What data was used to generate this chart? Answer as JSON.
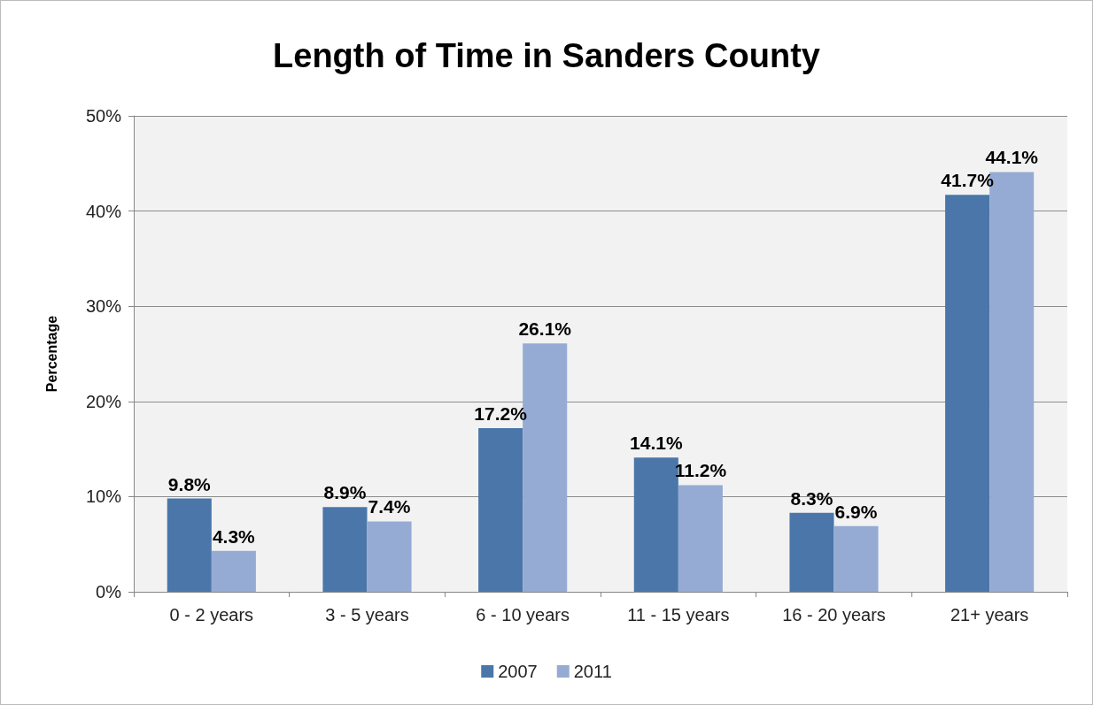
{
  "chart_data": {
    "type": "bar",
    "title": "Length of Time in Sanders County",
    "ylabel": "Percentage",
    "categories": [
      "0 - 2 years",
      "3 - 5 years",
      "6 - 10 years",
      "11 - 15 years",
      "16 - 20 years",
      "21+ years"
    ],
    "series": [
      {
        "name": "2007",
        "color": "#4a76a9",
        "values": [
          9.8,
          8.9,
          17.2,
          14.1,
          8.3,
          41.7
        ],
        "value_labels": [
          "9.8%",
          "8.9%",
          "17.2%",
          "14.1%",
          "8.3%",
          "41.7%"
        ]
      },
      {
        "name": "2011",
        "color": "#95abd4",
        "values": [
          4.3,
          7.4,
          26.1,
          11.2,
          6.9,
          44.1
        ],
        "value_labels": [
          "4.3%",
          "7.4%",
          "26.1%",
          "11.2%",
          "6.9%",
          "44.1%"
        ]
      }
    ],
    "ylim": [
      0,
      50
    ],
    "yticks": [
      {
        "value": 0,
        "label": "0%"
      },
      {
        "value": 10,
        "label": "10%"
      },
      {
        "value": 20,
        "label": "20%"
      },
      {
        "value": 30,
        "label": "30%"
      },
      {
        "value": 40,
        "label": "40%"
      },
      {
        "value": 50,
        "label": "50%"
      }
    ],
    "grid": "y",
    "legend": "bottom"
  }
}
